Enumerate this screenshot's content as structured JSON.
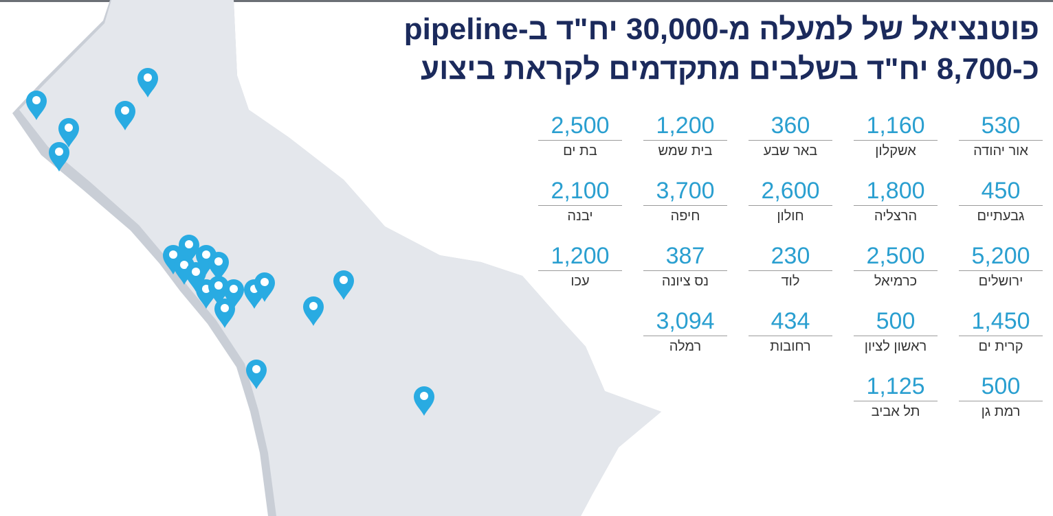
{
  "title": {
    "line1": "פוטנציאל של למעלה מ-30,000 יח\"ד ב-pipeline",
    "line2": "כ-8,700 יח\"ד בשלבים מתקדמים לקראת ביצוע"
  },
  "cities": [
    {
      "value": "530",
      "name": "אור יהודה"
    },
    {
      "value": "1,160",
      "name": "אשקלון"
    },
    {
      "value": "360",
      "name": "באר שבע"
    },
    {
      "value": "1,200",
      "name": "בית שמש"
    },
    {
      "value": "2,500",
      "name": "בת ים"
    },
    {
      "value": "450",
      "name": "גבעתיים"
    },
    {
      "value": "1,800",
      "name": "הרצליה"
    },
    {
      "value": "2,600",
      "name": "חולון"
    },
    {
      "value": "3,700",
      "name": "חיפה"
    },
    {
      "value": "2,100",
      "name": "יבנה"
    },
    {
      "value": "5,200",
      "name": "ירושלים"
    },
    {
      "value": "2,500",
      "name": "כרמיאל"
    },
    {
      "value": "230",
      "name": "לוד"
    },
    {
      "value": "387",
      "name": "נס ציונה"
    },
    {
      "value": "1,200",
      "name": "עכו"
    },
    {
      "value": "1,450",
      "name": "קרית ים"
    },
    {
      "value": "500",
      "name": "ראשון לציון"
    },
    {
      "value": "434",
      "name": "רחובות"
    },
    {
      "value": "3,094",
      "name": "רמלה"
    },
    {
      "value": "500",
      "name": "רמת גן"
    },
    {
      "value": "1,125",
      "name": "תל אביב"
    }
  ]
}
